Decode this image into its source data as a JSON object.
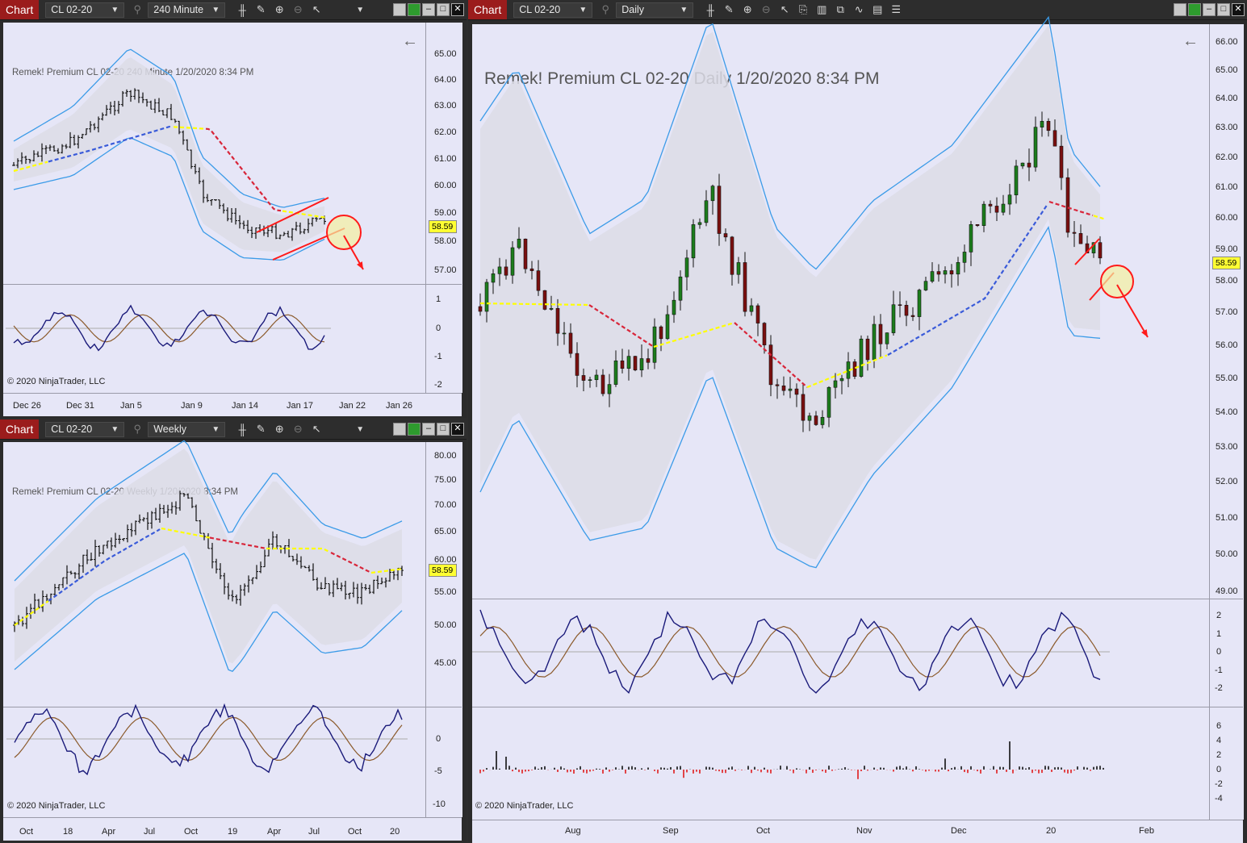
{
  "windows": {
    "topleft": {
      "chart_tab": "Chart",
      "instrument": "CL 02-20",
      "period": "240 Minute",
      "title": "Remek!  Premium  CL 02-20  240 Minute  1/20/2020 8:34 PM",
      "copyright": "© 2020 NinjaTrader, LLC",
      "last_price": "58.59",
      "price_ticks": [
        "65.00",
        "64.00",
        "63.00",
        "62.00",
        "61.00",
        "60.00",
        "59.00",
        "58.00",
        "57.00"
      ],
      "osc_ticks": [
        "1",
        "0",
        "-1",
        "-2"
      ],
      "time_ticks": [
        "Dec 26",
        "Dec 31",
        "Jan 5",
        "Jan 9",
        "Jan 14",
        "Jan 17",
        "Jan 22",
        "Jan 26"
      ]
    },
    "bottomleft": {
      "chart_tab": "Chart",
      "instrument": "CL 02-20",
      "period": "Weekly",
      "title": "Remek!  Premium  CL 02-20  Weekly  1/20/2020 8:34 PM",
      "copyright": "© 2020 NinjaTrader, LLC",
      "last_price": "58.59",
      "price_ticks": [
        "80.00",
        "75.00",
        "70.00",
        "65.00",
        "60.00",
        "55.00",
        "50.00",
        "45.00"
      ],
      "osc_ticks": [
        "0",
        "-5",
        "-10"
      ],
      "time_ticks": [
        "Oct",
        "18",
        "Apr",
        "Jul",
        "Oct",
        "19",
        "Apr",
        "Jul",
        "Oct",
        "20"
      ]
    },
    "right": {
      "chart_tab": "Chart",
      "instrument": "CL 02-20",
      "period": "Daily",
      "title": "Remek!  Premium  CL 02-20  Daily  1/20/2020 8:34 PM",
      "copyright": "© 2020 NinjaTrader, LLC",
      "last_price": "58.59",
      "price_ticks": [
        "66.00",
        "65.00",
        "64.00",
        "63.00",
        "62.00",
        "61.00",
        "60.00",
        "59.00",
        "58.00",
        "57.00",
        "56.00",
        "55.00",
        "54.00",
        "53.00",
        "52.00",
        "51.00",
        "50.00",
        "49.00"
      ],
      "osc_ticks": [
        "2",
        "1",
        "0",
        "-1",
        "-2"
      ],
      "hist_ticks": [
        "6",
        "4",
        "2",
        "0",
        "-2",
        "-4"
      ],
      "time_ticks": [
        "Aug",
        "Sep",
        "Oct",
        "Nov",
        "Dec",
        "20",
        "Feb"
      ]
    }
  },
  "colors": {
    "chart_tab": "#9b1c1c",
    "background": "#e6e6f7",
    "band": "#3b9be8",
    "trend_up": "#3a5bd9",
    "trend_down": "#d8263a",
    "neutral": "#ffff00",
    "annotation": "#ff1a1a"
  }
}
